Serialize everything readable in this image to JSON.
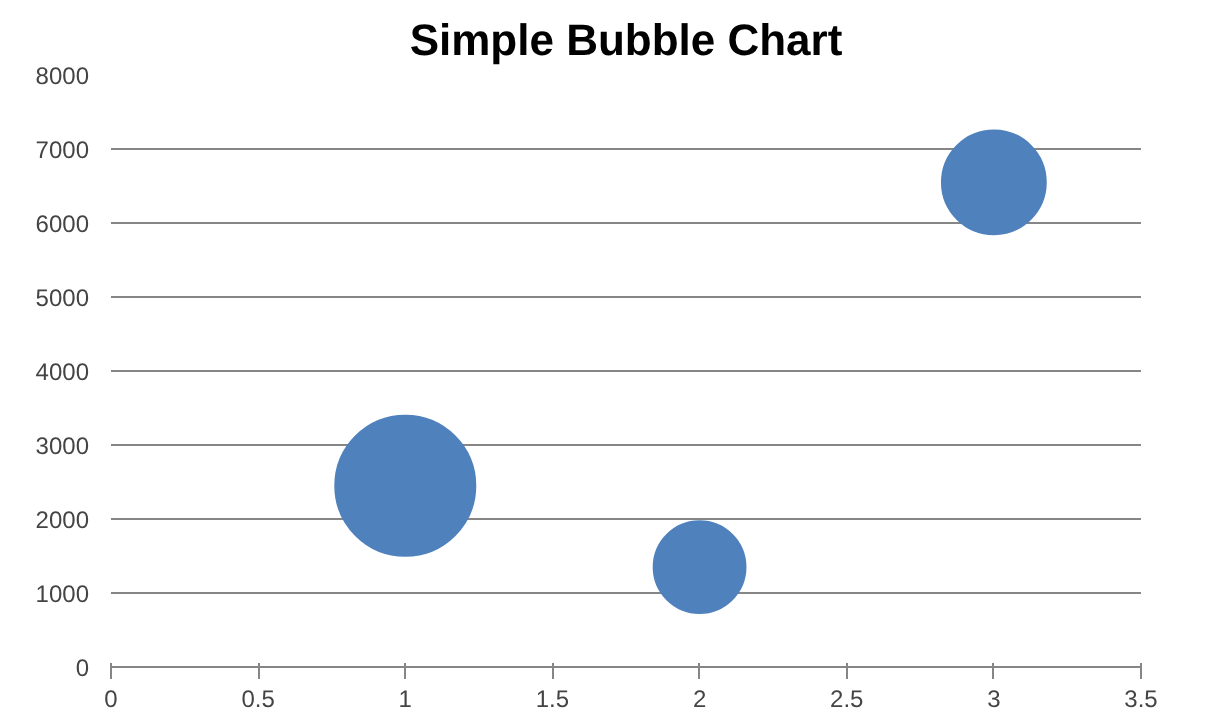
{
  "chart_data": {
    "type": "bubble",
    "title": "Simple Bubble Chart",
    "x": [
      1,
      2,
      3
    ],
    "values": [
      2450,
      1350,
      6550
    ],
    "sizes": [
      1,
      0.43,
      0.55
    ],
    "color": "#4f81bd",
    "xlim": [
      0,
      3.5
    ],
    "xticks": [
      0,
      0.5,
      1,
      1.5,
      2,
      2.5,
      3,
      3.5
    ],
    "ylim": [
      0,
      8000
    ],
    "yticks": [
      0,
      1000,
      2000,
      3000,
      4000,
      5000,
      6000,
      7000,
      8000
    ],
    "grid": "y"
  }
}
